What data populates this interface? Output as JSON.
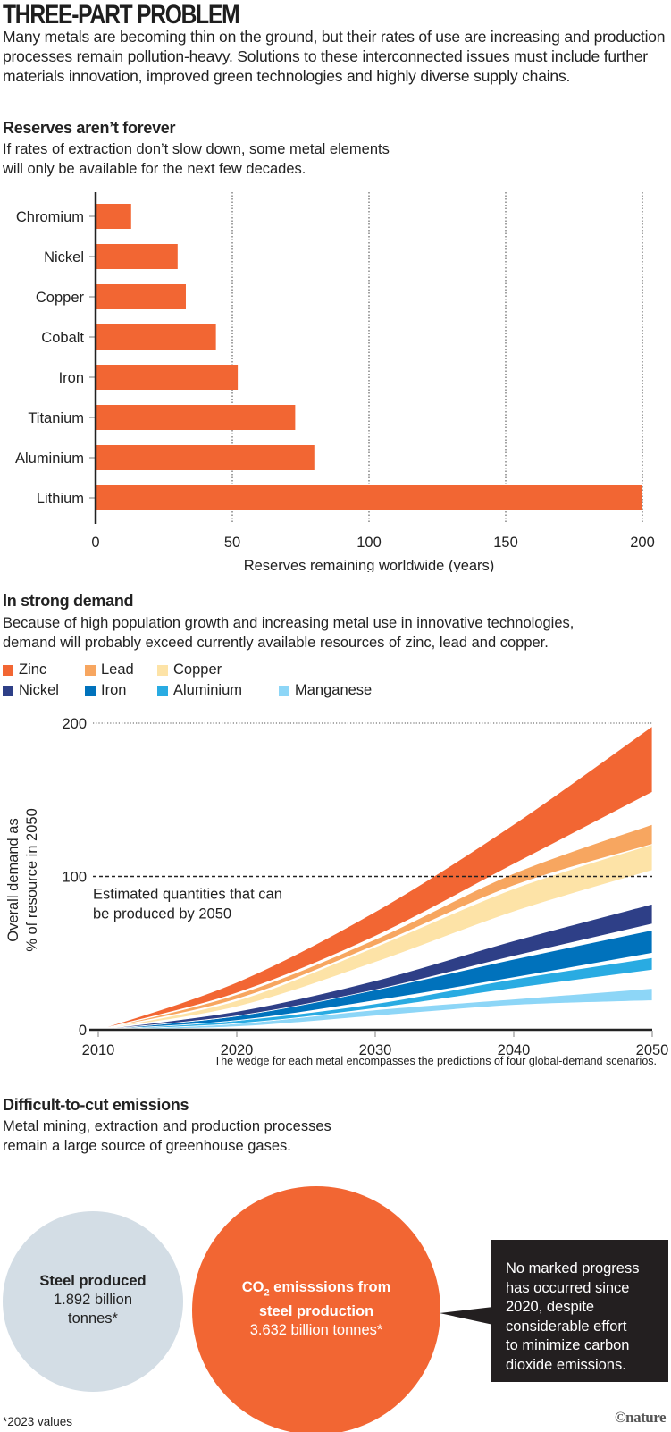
{
  "header": {
    "title": "THREE-PART PROBLEM",
    "intro": "Many metals are becoming thin on the ground, but their rates of use are increasing and production processes remain pollution-heavy. Solutions to these interconnected issues must include further materials innovation, improved green technologies and highly diverse supply chains."
  },
  "reserves": {
    "heading": "Reserves aren’t forever",
    "subtitle_lines": [
      "If rates of extraction don’t slow down, some metal elements",
      "will only be available for the next few decades."
    ]
  },
  "demand": {
    "heading": "In strong demand",
    "subtitle_lines": [
      "Because of high population growth and increasing metal use in innovative technologies,",
      "demand will probably exceed currently available resources of zinc, lead and copper."
    ],
    "footnote": "The wedge for each metal encompasses the predictions of four global-demand scenarios."
  },
  "emissions": {
    "heading": "Difficult-to-cut emissions",
    "subtitle_lines": [
      "Metal mining, extraction and production processes",
      "remain a large source of greenhouse gases."
    ],
    "steel_title": "Steel produced",
    "steel_value_lines": [
      "1.892 billion",
      "tonnes*"
    ],
    "co2_title_prefix": "CO",
    "co2_title_sub": "2",
    "co2_title_rest": " emisssions from",
    "co2_title_line2": "steel production",
    "co2_value": "3.632 billion tonnes*",
    "callout_lines": [
      "No marked progress",
      "has occurred since",
      "2020, despite",
      "considerable effort",
      "to minimize carbon",
      "dioxide emissions."
    ],
    "footnote": "*2023 values",
    "credit": "©nature",
    "colors": {
      "steel": "#d3dde5",
      "co2": "#f26633",
      "callout": "#231f20"
    }
  },
  "chart_data": [
    {
      "type": "bar",
      "orientation": "horizontal",
      "title": "Reserves aren’t forever",
      "categories": [
        "Chromium",
        "Nickel",
        "Copper",
        "Cobalt",
        "Iron",
        "Titanium",
        "Aluminium",
        "Lithium"
      ],
      "values": [
        13,
        30,
        33,
        44,
        52,
        73,
        80,
        200
      ],
      "xlabel": "Reserves remaining worldwide (years)",
      "ylabel": "",
      "xlim": [
        0,
        200
      ],
      "xticks": [
        0,
        50,
        100,
        150,
        200
      ],
      "grid": "vertical dotted",
      "color": "#f26633"
    },
    {
      "type": "area",
      "subtype": "range-wedge",
      "title": "In strong demand",
      "xlabel": "",
      "ylabel": "Overall demand as % of resource in 2050",
      "ylabel_lines": [
        "Overall demand as",
        "% of resource in 2050"
      ],
      "x": [
        2010,
        2020,
        2030,
        2040,
        2050
      ],
      "xlim": [
        2010,
        2050
      ],
      "ylim": [
        0,
        200
      ],
      "xticks": [
        2010,
        2020,
        2030,
        2040,
        2050
      ],
      "yticks": [
        0,
        100,
        200
      ],
      "reference_line": {
        "y": 100,
        "label_lines": [
          "Estimated quantities that can",
          "be produced by 2050"
        ]
      },
      "legend": "top-left",
      "series": [
        {
          "name": "Zinc",
          "color": "#f26633",
          "low": [
            0,
            24,
            61,
            108,
            155
          ],
          "high": [
            0,
            31,
            77,
            134,
            198
          ]
        },
        {
          "name": "Lead",
          "color": "#f7a660",
          "low": [
            0,
            20,
            55,
            94,
            121
          ],
          "high": [
            0,
            23,
            59,
            102,
            134
          ]
        },
        {
          "name": "Copper",
          "color": "#fde3a7",
          "low": [
            0,
            15,
            44,
            77,
            104
          ],
          "high": [
            0,
            19,
            54,
            92,
            121
          ]
        },
        {
          "name": "Nickel",
          "color": "#2e3f87",
          "low": [
            0,
            9,
            26,
            48,
            69
          ],
          "high": [
            0,
            12,
            32,
            58,
            82
          ]
        },
        {
          "name": "Iron",
          "color": "#0072bc",
          "low": [
            0,
            6,
            19,
            34,
            50
          ],
          "high": [
            0,
            9,
            26,
            46,
            65
          ]
        },
        {
          "name": "Aluminium",
          "color": "#29abe2",
          "low": [
            0,
            4,
            14,
            27,
            39
          ],
          "high": [
            0,
            6,
            17,
            33,
            47
          ]
        },
        {
          "name": "Manganese",
          "color": "#8dd6f7",
          "low": [
            0,
            2,
            9,
            16,
            19
          ],
          "high": [
            0,
            4,
            13,
            20,
            27
          ]
        }
      ]
    }
  ]
}
